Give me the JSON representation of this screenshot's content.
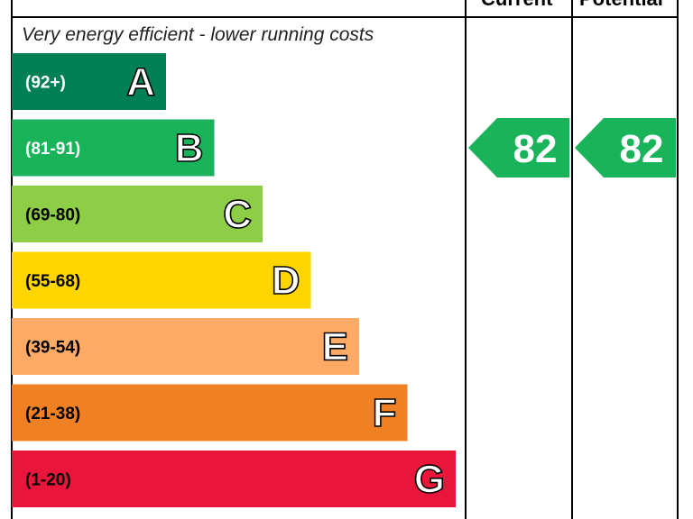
{
  "headers": {
    "current": "Current",
    "potential": "Potential"
  },
  "caption": "Very energy efficient - lower running costs",
  "chart_data": {
    "type": "bar",
    "bands": [
      {
        "letter": "A",
        "range": "(92+)",
        "color": "#008054",
        "text_color": "#ffffff"
      },
      {
        "letter": "B",
        "range": "(81-91)",
        "color": "#19b459",
        "text_color": "#ffffff"
      },
      {
        "letter": "C",
        "range": "(69-80)",
        "color": "#8dce46",
        "text_color": "#000000"
      },
      {
        "letter": "D",
        "range": "(55-68)",
        "color": "#ffd500",
        "text_color": "#000000"
      },
      {
        "letter": "E",
        "range": "(39-54)",
        "color": "#fcaa65",
        "text_color": "#000000"
      },
      {
        "letter": "F",
        "range": "(21-38)",
        "color": "#ef8023",
        "text_color": "#000000"
      },
      {
        "letter": "G",
        "range": "(1-20)",
        "color": "#e9153b",
        "text_color": "#000000"
      }
    ],
    "current": {
      "value": 82,
      "band": "B",
      "color": "#19b459"
    },
    "potential": {
      "value": 82,
      "band": "B",
      "color": "#19b459"
    }
  }
}
